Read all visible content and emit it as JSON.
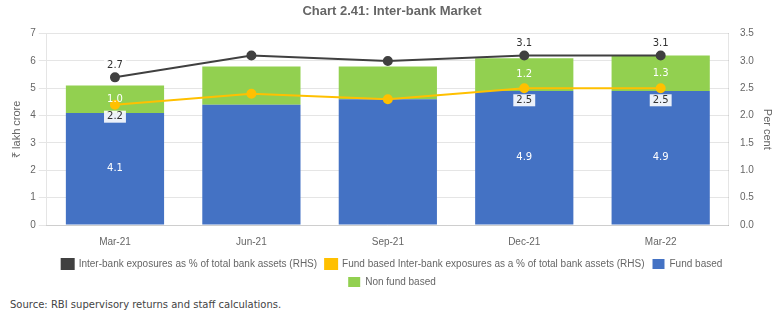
{
  "chart_data": {
    "type": "bar",
    "title": "Chart 2.41: Inter-bank Market",
    "categories": [
      "Mar-21",
      "Jun-21",
      "Sep-21",
      "Dec-21",
      "Mar-22"
    ],
    "series": [
      {
        "name": "Fund based",
        "type": "bar",
        "color": "#4472C4",
        "values": [
          4.1,
          4.4,
          4.6,
          4.9,
          4.9
        ],
        "value_labels": [
          "4.1",
          null,
          null,
          "4.9",
          "4.9"
        ]
      },
      {
        "name": "Non fund based",
        "type": "bar",
        "color": "#92D050",
        "values": [
          1.0,
          1.4,
          1.2,
          1.2,
          1.3
        ],
        "value_labels": [
          "1.0",
          null,
          null,
          "1.2",
          "1.3"
        ]
      },
      {
        "name": "Inter-bank exposures as % of total bank assets (RHS)",
        "type": "line",
        "axis": "y2",
        "marker": "circle",
        "color": "#404040",
        "values": [
          2.7,
          3.1,
          3.0,
          3.1,
          3.1
        ],
        "value_labels": [
          "2.7",
          null,
          null,
          "3.1",
          "3.1"
        ]
      },
      {
        "name": "Fund based Inter-bank exposures as a % of total bank assets (RHS)",
        "type": "line",
        "axis": "y2",
        "marker": "circle",
        "color": "#FFC000",
        "values": [
          2.2,
          2.4,
          2.3,
          2.5,
          2.5
        ],
        "value_labels": [
          "2.2",
          null,
          null,
          "2.5",
          "2.5"
        ]
      }
    ],
    "stacked": true,
    "ylabel": "₹ lakh crore",
    "y2label": "Per cent",
    "ylim": [
      0,
      7
    ],
    "yticks": [
      0,
      1,
      2,
      3,
      4,
      5,
      6,
      7
    ],
    "y2lim": [
      0.0,
      3.5
    ],
    "y2ticks": [
      {
        "value": 0.0,
        "label": "0.0"
      },
      0.5,
      {
        "value": 1.0,
        "label": "1.0"
      },
      1.5,
      {
        "value": 2.0,
        "label": "2.0"
      },
      2.5,
      {
        "value": 3.0,
        "label": "3.0"
      },
      3.5
    ],
    "grid": true,
    "legend": "bottom",
    "source": "Source: RBI supervisory returns and staff calculations."
  }
}
